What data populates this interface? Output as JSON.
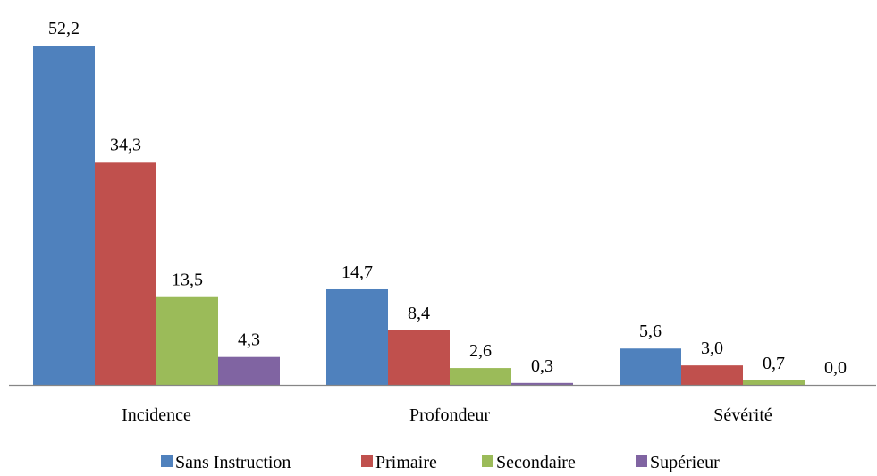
{
  "chart_data": {
    "type": "bar",
    "categories": [
      "Incidence",
      "Profondeur",
      "Sévérité"
    ],
    "series": [
      {
        "name": "Sans Instruction",
        "color": "#4F81BD",
        "values": [
          52.2,
          14.7,
          5.6
        ],
        "labels": [
          "52,2",
          "14,7",
          "5,6"
        ]
      },
      {
        "name": "Primaire",
        "color": "#C0504D",
        "values": [
          34.3,
          8.4,
          3.0
        ],
        "labels": [
          "34,3",
          "8,4",
          "3,0"
        ]
      },
      {
        "name": "Secondaire",
        "color": "#9BBB59",
        "values": [
          13.5,
          2.6,
          0.7
        ],
        "labels": [
          "13,5",
          "2,6",
          "0,7"
        ]
      },
      {
        "name": "Supérieur",
        "color": "#8064A2",
        "values": [
          4.3,
          0.3,
          0.0
        ],
        "labels": [
          "4,3",
          "0,3",
          "0,0"
        ]
      }
    ],
    "title": "",
    "xlabel": "",
    "ylabel": "",
    "ylim": [
      0,
      52.2
    ],
    "grid": false,
    "legend_position": "bottom"
  }
}
